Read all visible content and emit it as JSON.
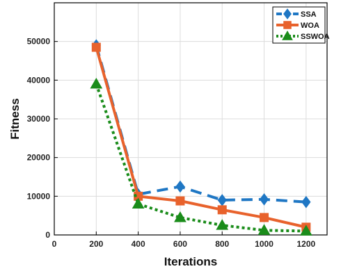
{
  "chart_data": {
    "type": "line",
    "title": "",
    "xlabel": "Iterations",
    "ylabel": "Fitness",
    "x": [
      200,
      400,
      600,
      800,
      1000,
      1200
    ],
    "xlim": [
      0,
      1300
    ],
    "ylim": [
      0,
      60000
    ],
    "xticks": [
      0,
      200,
      400,
      600,
      800,
      1000,
      1200
    ],
    "yticks": [
      0,
      10000,
      20000,
      30000,
      40000,
      50000
    ],
    "xtick_labels": [
      "0",
      "200",
      "400",
      "600",
      "800",
      "1000",
      "1200"
    ],
    "ytick_labels": [
      "0",
      "10000",
      "20000",
      "30000",
      "40000",
      "50000"
    ],
    "grid": true,
    "legend_position": "top-right",
    "series": [
      {
        "name": "SSA",
        "values": [
          49000,
          10500,
          12500,
          9000,
          9200,
          8500
        ],
        "color": "#1f77c4",
        "marker": "diamond",
        "line": "dashed"
      },
      {
        "name": "WOA",
        "values": [
          48500,
          10000,
          8800,
          6500,
          4500,
          2000
        ],
        "color": "#e8622c",
        "marker": "square",
        "line": "solid"
      },
      {
        "name": "SSWOA",
        "values": [
          39000,
          8000,
          4500,
          2500,
          1200,
          1000
        ],
        "color": "#1a8c1a",
        "marker": "triangle",
        "line": "dotted"
      }
    ]
  }
}
